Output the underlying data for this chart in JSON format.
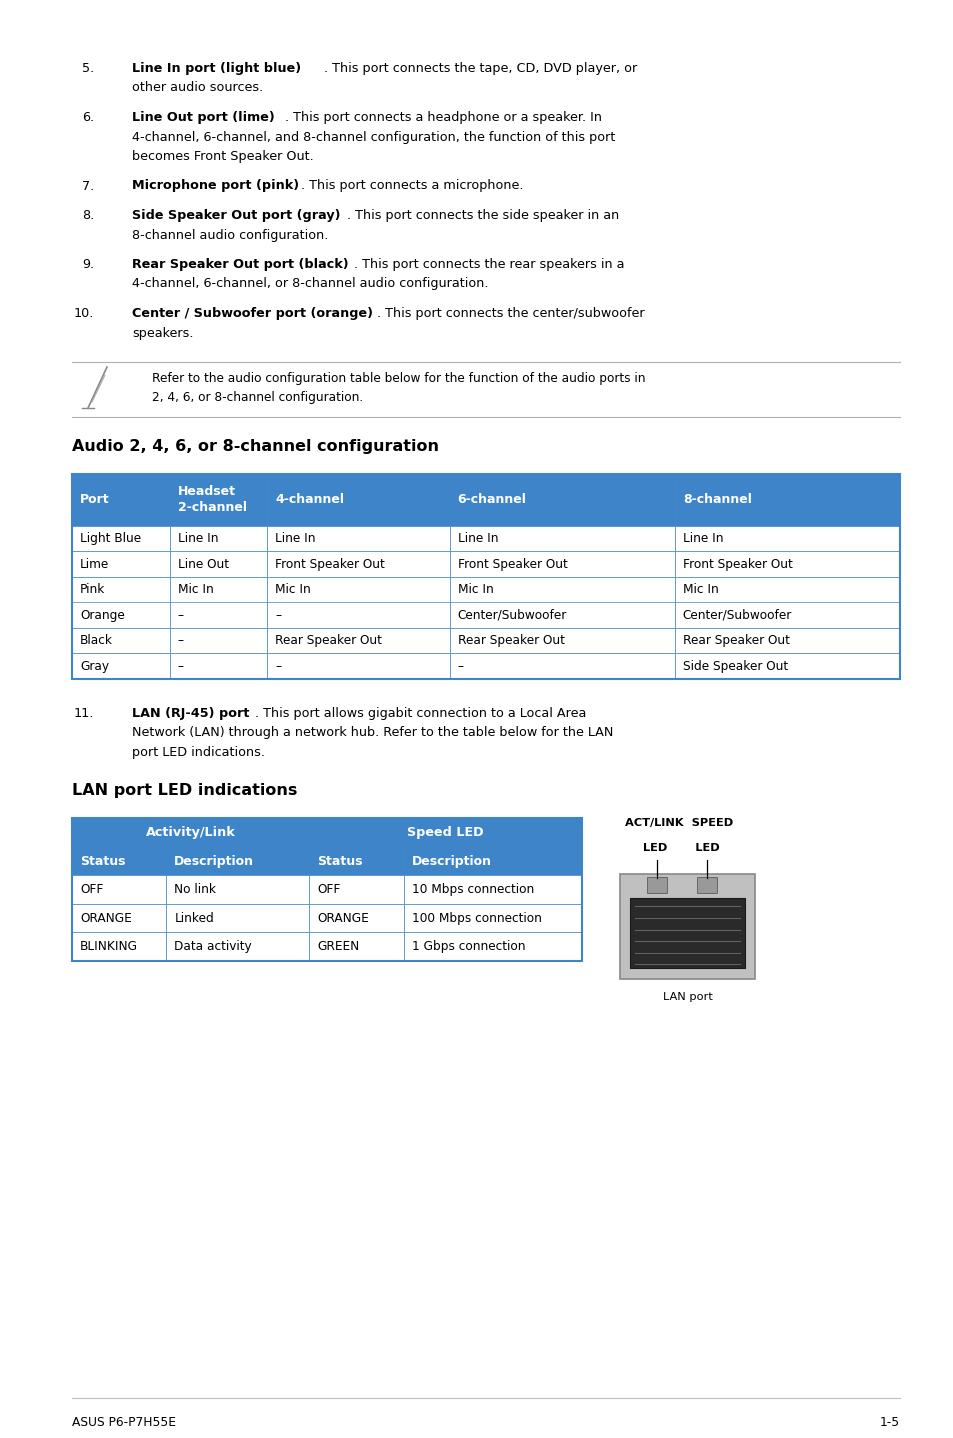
{
  "bg_color": "#ffffff",
  "text_color": "#000000",
  "header_color": "#3d85c8",
  "border_color": "#3d85c8",
  "footer_left": "ASUS P6-P7H55E",
  "footer_right": "1-5",
  "audio_section_title": "Audio 2, 4, 6, or 8-channel configuration",
  "lan_section_title": "LAN port LED indications",
  "note_line1": "Refer to the audio configuration table below for the function of the audio ports in",
  "note_line2": "2, 4, 6, or 8-channel configuration.",
  "items": [
    {
      "num": "5.",
      "bold": "Line In port (light blue)",
      "lines": [
        ". This port connects the tape, CD, DVD player, or",
        "other audio sources."
      ]
    },
    {
      "num": "6.",
      "bold": "Line Out port (lime)",
      "lines": [
        ". This port connects a headphone or a speaker. In",
        "4-channel, 6-channel, and 8-channel configuration, the function of this port",
        "becomes Front Speaker Out."
      ]
    },
    {
      "num": "7.",
      "bold": "Microphone port (pink)",
      "lines": [
        ". This port connects a microphone."
      ]
    },
    {
      "num": "8.",
      "bold": "Side Speaker Out port (gray)",
      "lines": [
        ". This port connects the side speaker in an",
        "8-channel audio configuration."
      ]
    },
    {
      "num": "9.",
      "bold": "Rear Speaker Out port (black)",
      "lines": [
        ". This port connects the rear speakers in a",
        "4-channel, 6-channel, or 8-channel audio configuration."
      ]
    },
    {
      "num": "10.",
      "bold": "Center / Subwoofer port (orange)",
      "lines": [
        ". This port connects the center/subwoofer",
        "speakers."
      ]
    }
  ],
  "audio_headers": [
    "Port",
    "Headset\n2-channel",
    "4-channel",
    "6-channel",
    "8-channel"
  ],
  "audio_col_ratios": [
    0.118,
    0.118,
    0.22,
    0.272,
    0.272
  ],
  "audio_rows": [
    [
      "Light Blue",
      "Line In",
      "Line In",
      "Line In",
      "Line In"
    ],
    [
      "Lime",
      "Line Out",
      "Front Speaker Out",
      "Front Speaker Out",
      "Front Speaker Out"
    ],
    [
      "Pink",
      "Mic In",
      "Mic In",
      "Mic In",
      "Mic In"
    ],
    [
      "Orange",
      "–",
      "–",
      "Center/Subwoofer",
      "Center/Subwoofer"
    ],
    [
      "Black",
      "–",
      "Rear Speaker Out",
      "Rear Speaker Out",
      "Rear Speaker Out"
    ],
    [
      "Gray",
      "–",
      "–",
      "–",
      "Side Speaker Out"
    ]
  ],
  "lan_col_ratios": [
    0.185,
    0.28,
    0.185,
    0.35
  ],
  "lan_rows": [
    [
      "OFF",
      "No link",
      "OFF",
      "10 Mbps connection"
    ],
    [
      "ORANGE",
      "Linked",
      "ORANGE",
      "100 Mbps connection"
    ],
    [
      "BLINKING",
      "Data activity",
      "GREEN",
      "1 Gbps connection"
    ]
  ]
}
